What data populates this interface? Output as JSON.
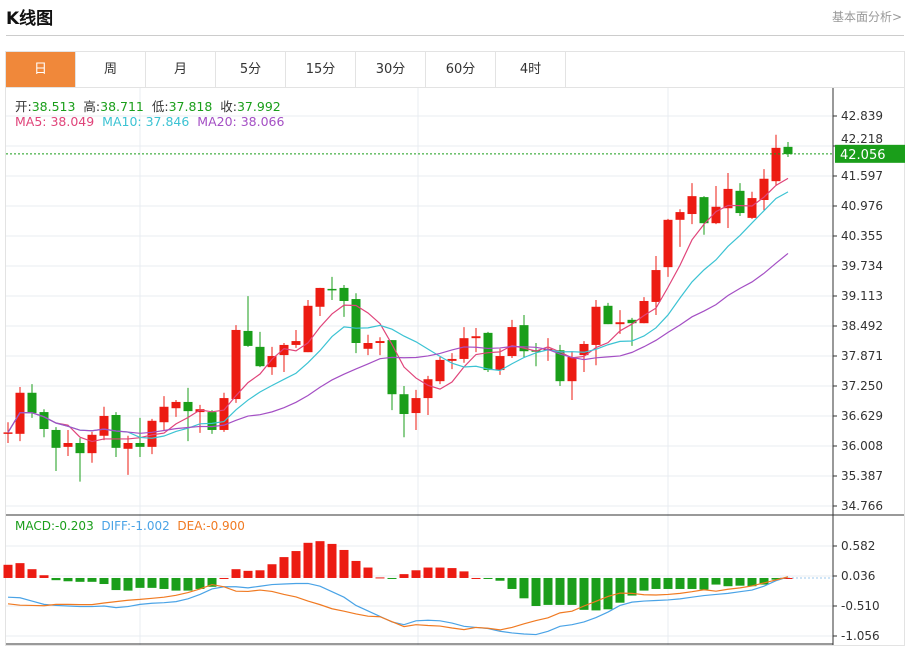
{
  "header": {
    "title": "K线图",
    "link": "基本面分析>"
  },
  "tabs": [
    "日",
    "周",
    "月",
    "5分",
    "15分",
    "30分",
    "60分",
    "4时"
  ],
  "active_tab": 0,
  "ohlc_info": {
    "open_label": "开:",
    "open": "38.513",
    "high_label": "高:",
    "high": "38.711",
    "low_label": "低:",
    "low": "37.818",
    "close_label": "收:",
    "close": "37.992"
  },
  "ma_info": {
    "ma5": "MA5: 38.049",
    "ma10": "MA10: 37.846",
    "ma20": "MA20: 38.066"
  },
  "macd_info": {
    "macd": "MACD:-0.203",
    "diff": "DIFF:-1.002",
    "dea": "DEA:-0.900"
  },
  "current_price": "42.056",
  "colors": {
    "up": "#ec1b12",
    "down": "#1a9e1a",
    "ma5": "#e0447a",
    "ma10": "#3cc3d3",
    "ma20": "#a44fc4",
    "diff": "#4aa3e6",
    "dea": "#f07a22",
    "accent": "#f0883a"
  },
  "chart_data": {
    "type": "candlestick",
    "price_ticks": [
      "42.839",
      "42.218",
      "41.597",
      "40.976",
      "40.355",
      "39.734",
      "39.113",
      "38.492",
      "37.871",
      "37.250",
      "36.629",
      "36.008",
      "35.387",
      "34.766"
    ],
    "price_range": [
      34.766,
      42.839
    ],
    "macd_ticks": [
      "0.582",
      "0.036",
      "-0.510",
      "-1.056"
    ],
    "macd_range": [
      -1.056,
      0.582
    ],
    "ohlc": [
      [
        36.28,
        36.5,
        36.07,
        36.29
      ],
      [
        36.26,
        37.23,
        36.11,
        37.11
      ],
      [
        37.11,
        37.29,
        36.59,
        36.69
      ],
      [
        36.71,
        36.77,
        36.19,
        36.36
      ],
      [
        36.34,
        36.4,
        35.49,
        35.97
      ],
      [
        35.99,
        36.34,
        35.8,
        36.07
      ],
      [
        36.07,
        36.17,
        35.27,
        35.86
      ],
      [
        35.86,
        36.3,
        35.66,
        36.24
      ],
      [
        36.22,
        36.82,
        36.13,
        36.63
      ],
      [
        36.65,
        36.71,
        35.78,
        35.97
      ],
      [
        35.95,
        36.22,
        35.41,
        36.07
      ],
      [
        36.07,
        36.59,
        35.78,
        35.99
      ],
      [
        35.99,
        36.57,
        35.84,
        36.53
      ],
      [
        36.5,
        37.04,
        36.32,
        36.82
      ],
      [
        36.79,
        36.96,
        36.61,
        36.92
      ],
      [
        36.92,
        37.21,
        36.11,
        36.73
      ],
      [
        36.71,
        36.86,
        36.28,
        36.77
      ],
      [
        36.71,
        36.75,
        36.26,
        36.34
      ],
      [
        36.34,
        37.11,
        36.3,
        37.0
      ],
      [
        36.98,
        38.51,
        36.9,
        38.41
      ],
      [
        38.39,
        39.11,
        38.06,
        38.08
      ],
      [
        38.06,
        38.37,
        37.64,
        37.66
      ],
      [
        37.64,
        38.06,
        37.48,
        37.87
      ],
      [
        37.89,
        38.14,
        37.54,
        38.1
      ],
      [
        38.1,
        38.41,
        38.04,
        38.18
      ],
      [
        37.95,
        39.03,
        37.95,
        38.91
      ],
      [
        38.89,
        39.28,
        38.7,
        39.28
      ],
      [
        39.26,
        39.51,
        39.03,
        39.24
      ],
      [
        39.28,
        39.34,
        38.68,
        39.01
      ],
      [
        39.05,
        39.17,
        37.93,
        38.14
      ],
      [
        38.02,
        38.31,
        37.89,
        38.14
      ],
      [
        38.14,
        38.26,
        37.89,
        38.18
      ],
      [
        38.2,
        38.2,
        36.75,
        37.08
      ],
      [
        37.08,
        37.25,
        36.19,
        36.67
      ],
      [
        36.69,
        37.17,
        36.34,
        37.0
      ],
      [
        37.0,
        37.46,
        36.65,
        37.39
      ],
      [
        37.35,
        37.85,
        37.29,
        37.79
      ],
      [
        37.77,
        37.93,
        37.6,
        37.81
      ],
      [
        37.81,
        38.47,
        37.73,
        38.24
      ],
      [
        38.24,
        38.45,
        37.95,
        38.28
      ],
      [
        38.35,
        38.37,
        37.54,
        37.58
      ],
      [
        37.58,
        38.02,
        37.48,
        37.87
      ],
      [
        37.87,
        38.62,
        37.83,
        38.47
      ],
      [
        38.51,
        38.72,
        37.83,
        37.97
      ],
      [
        37.99,
        38.14,
        37.66,
        37.97
      ],
      [
        37.99,
        38.24,
        37.77,
        38.02
      ],
      [
        37.99,
        38.1,
        37.25,
        37.35
      ],
      [
        37.35,
        37.97,
        36.96,
        37.85
      ],
      [
        37.89,
        38.18,
        37.54,
        38.12
      ],
      [
        38.1,
        39.03,
        37.68,
        38.89
      ],
      [
        38.91,
        38.97,
        38.53,
        38.53
      ],
      [
        38.53,
        38.82,
        38.33,
        38.57
      ],
      [
        38.62,
        38.66,
        38.08,
        38.55
      ],
      [
        38.55,
        39.09,
        38.55,
        39.01
      ],
      [
        38.99,
        39.94,
        38.72,
        39.65
      ],
      [
        39.71,
        40.71,
        39.51,
        40.69
      ],
      [
        40.69,
        40.91,
        40.13,
        40.85
      ],
      [
        40.81,
        41.45,
        40.6,
        41.18
      ],
      [
        41.16,
        41.18,
        40.38,
        40.62
      ],
      [
        40.62,
        41.39,
        40.6,
        40.96
      ],
      [
        40.93,
        41.66,
        40.52,
        41.33
      ],
      [
        41.29,
        41.45,
        40.77,
        40.83
      ],
      [
        40.73,
        41.27,
        40.71,
        41.14
      ],
      [
        41.1,
        41.74,
        40.89,
        41.54
      ],
      [
        41.49,
        42.45,
        41.39,
        42.18
      ],
      [
        42.2,
        42.3,
        41.99,
        42.05
      ]
    ],
    "macd_hist": [
      0.24,
      0.27,
      0.16,
      0.05,
      -0.04,
      -0.06,
      -0.07,
      -0.07,
      -0.11,
      -0.22,
      -0.23,
      -0.18,
      -0.18,
      -0.2,
      -0.23,
      -0.23,
      -0.2,
      -0.16,
      0.0,
      0.16,
      0.13,
      0.14,
      0.25,
      0.38,
      0.49,
      0.64,
      0.67,
      0.62,
      0.51,
      0.31,
      0.19,
      0.01,
      -0.01,
      0.07,
      0.14,
      0.19,
      0.19,
      0.18,
      0.12,
      0.0,
      -0.01,
      -0.05,
      -0.2,
      -0.37,
      -0.51,
      -0.49,
      -0.49,
      -0.49,
      -0.58,
      -0.59,
      -0.57,
      -0.45,
      -0.32,
      -0.23,
      -0.2,
      -0.2,
      -0.2,
      -0.2,
      -0.21,
      -0.12,
      -0.15,
      -0.14,
      -0.15,
      -0.12,
      -0.03,
      0.0
    ],
    "diff": [
      -0.35,
      -0.36,
      -0.42,
      -0.48,
      -0.5,
      -0.51,
      -0.52,
      -0.52,
      -0.51,
      -0.54,
      -0.52,
      -0.48,
      -0.46,
      -0.45,
      -0.43,
      -0.38,
      -0.3,
      -0.2,
      -0.16,
      -0.16,
      -0.18,
      -0.15,
      -0.12,
      -0.11,
      -0.1,
      -0.1,
      -0.15,
      -0.25,
      -0.35,
      -0.5,
      -0.6,
      -0.7,
      -0.8,
      -0.85,
      -0.78,
      -0.77,
      -0.78,
      -0.82,
      -0.88,
      -0.9,
      -0.92,
      -0.97,
      -1.0,
      -1.02,
      -1.03,
      -0.97,
      -0.88,
      -0.85,
      -0.8,
      -0.72,
      -0.62,
      -0.5,
      -0.44,
      -0.42,
      -0.41,
      -0.4,
      -0.38,
      -0.35,
      -0.32,
      -0.3,
      -0.28,
      -0.25,
      -0.22,
      -0.15,
      -0.05,
      0.02
    ]
  }
}
